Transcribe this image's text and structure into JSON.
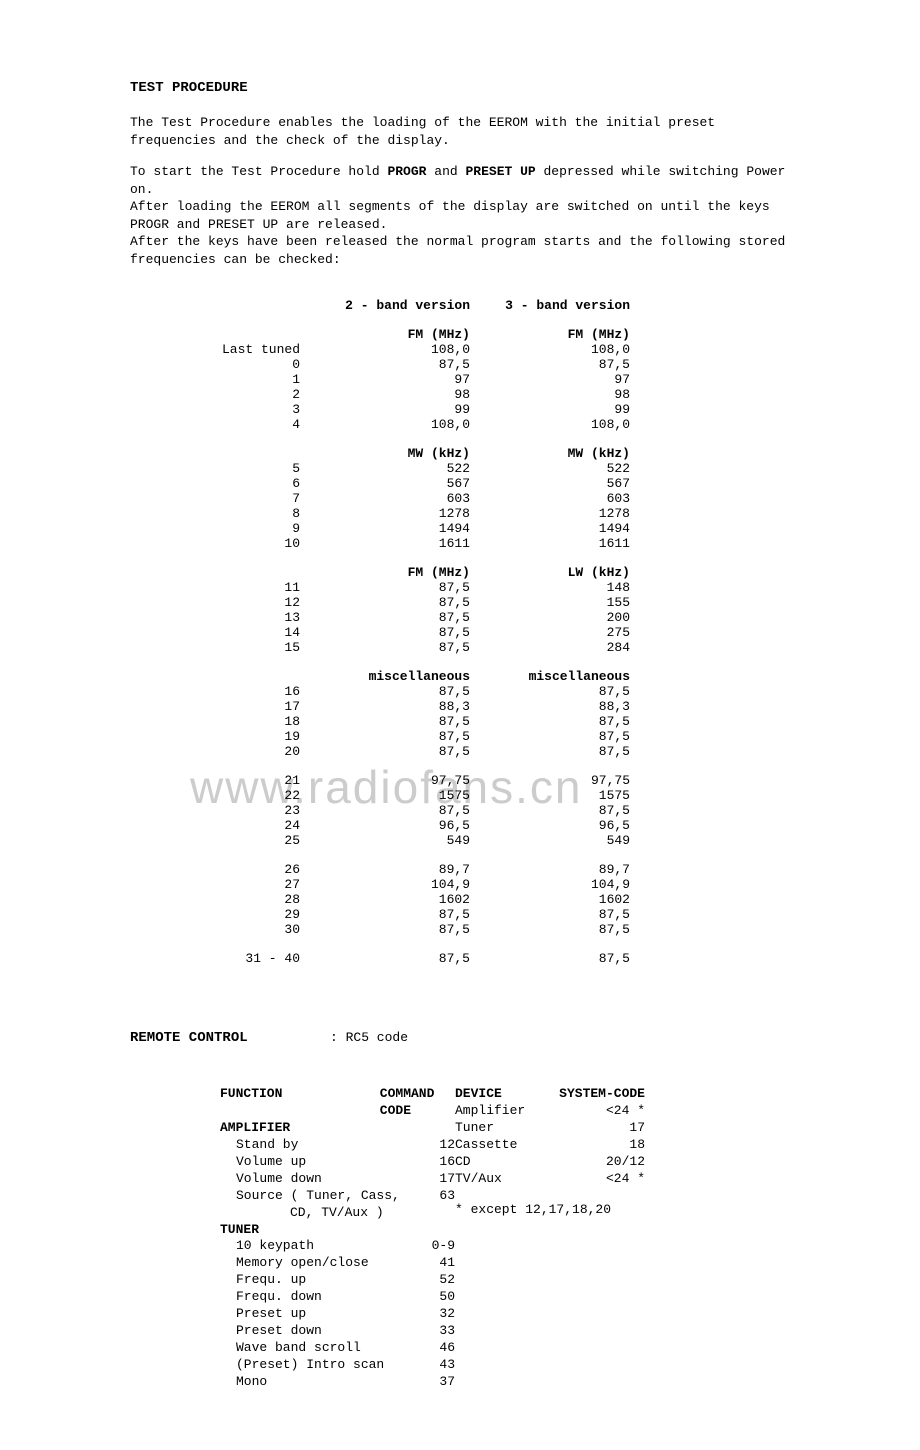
{
  "title": "TEST PROCEDURE",
  "intro1": "The Test Procedure enables the loading of the EEROM with the initial preset frequencies and the check of the display.",
  "intro2_a": "To start the Test Procedure hold ",
  "intro2_b": "PROGR",
  "intro2_c": " and ",
  "intro2_d": "PRESET UP",
  "intro2_e": " depressed while switching Power on.",
  "intro3": "After loading the EEROM all segments of the display are switched on until the keys PROGR and PRESET UP are released.",
  "intro4": "After the keys have been released the normal program starts and the following stored frequencies can be checked:",
  "col_headers": {
    "v2": "2 - band version",
    "v3": "3 - band version"
  },
  "groups": [
    {
      "h2": "FM (MHz)",
      "h3": "FM (MHz)",
      "rows": [
        {
          "l": "Last tuned",
          "v2": "108,0",
          "v3": "108,0"
        },
        {
          "l": "0",
          "v2": "87,5",
          "v3": "87,5"
        },
        {
          "l": "1",
          "v2": "97",
          "v3": "97"
        },
        {
          "l": "2",
          "v2": "98",
          "v3": "98"
        },
        {
          "l": "3",
          "v2": "99",
          "v3": "99"
        },
        {
          "l": "4",
          "v2": "108,0",
          "v3": "108,0"
        }
      ]
    },
    {
      "h2": "MW (kHz)",
      "h3": "MW (kHz)",
      "rows": [
        {
          "l": "5",
          "v2": "522",
          "v3": "522"
        },
        {
          "l": "6",
          "v2": "567",
          "v3": "567"
        },
        {
          "l": "7",
          "v2": "603",
          "v3": "603"
        },
        {
          "l": "8",
          "v2": "1278",
          "v3": "1278"
        },
        {
          "l": "9",
          "v2": "1494",
          "v3": "1494"
        },
        {
          "l": "10",
          "v2": "1611",
          "v3": "1611"
        }
      ]
    },
    {
      "h2": "FM (MHz)",
      "h3": "LW (kHz)",
      "rows": [
        {
          "l": "11",
          "v2": "87,5",
          "v3": "148"
        },
        {
          "l": "12",
          "v2": "87,5",
          "v3": "155"
        },
        {
          "l": "13",
          "v2": "87,5",
          "v3": "200"
        },
        {
          "l": "14",
          "v2": "87,5",
          "v3": "275"
        },
        {
          "l": "15",
          "v2": "87,5",
          "v3": "284"
        }
      ]
    },
    {
      "h2": "miscellaneous",
      "h3": "miscellaneous",
      "rows": [
        {
          "l": "16",
          "v2": "87,5",
          "v3": "87,5"
        },
        {
          "l": "17",
          "v2": "88,3",
          "v3": "88,3"
        },
        {
          "l": "18",
          "v2": "87,5",
          "v3": "87,5"
        },
        {
          "l": "19",
          "v2": "87,5",
          "v3": "87,5"
        },
        {
          "l": "20",
          "v2": "87,5",
          "v3": "87,5"
        }
      ]
    },
    {
      "h2": "",
      "h3": "",
      "rows": [
        {
          "l": "21",
          "v2": "97,75",
          "v3": "97,75"
        },
        {
          "l": "22",
          "v2": "1575",
          "v3": "1575"
        },
        {
          "l": "23",
          "v2": "87,5",
          "v3": "87,5"
        },
        {
          "l": "24",
          "v2": "96,5",
          "v3": "96,5"
        },
        {
          "l": "25",
          "v2": "549",
          "v3": "549"
        }
      ]
    },
    {
      "h2": "",
      "h3": "",
      "rows": [
        {
          "l": "26",
          "v2": "89,7",
          "v3": "89,7"
        },
        {
          "l": "27",
          "v2": "104,9",
          "v3": "104,9"
        },
        {
          "l": "28",
          "v2": "1602",
          "v3": "1602"
        },
        {
          "l": "29",
          "v2": "87,5",
          "v3": "87,5"
        },
        {
          "l": "30",
          "v2": "87,5",
          "v3": "87,5"
        }
      ]
    },
    {
      "h2": "",
      "h3": "",
      "rows": [
        {
          "l": "31 - 40",
          "v2": "87,5",
          "v3": "87,5"
        }
      ]
    }
  ],
  "remote": {
    "heading": "REMOTE CONTROL",
    "value": ": RC5 code"
  },
  "rc": {
    "headers": {
      "func": "FUNCTION",
      "code": "COMMAND CODE",
      "dev": "DEVICE",
      "sys": "SYSTEM-CODE"
    },
    "amp_label": "AMPLIFIER",
    "tuner_label": "TUNER",
    "amp": [
      {
        "f": "Stand by",
        "c": "12"
      },
      {
        "f": "Volume up",
        "c": "16"
      },
      {
        "f": "Volume down",
        "c": "17"
      },
      {
        "f": "Source ( Tuner, Cass,",
        "c": "63"
      },
      {
        "f": "CD, TV/Aux )",
        "c": ""
      }
    ],
    "tuner": [
      {
        "f": "10 keypath",
        "c": "0-9"
      },
      {
        "f": "Memory open/close",
        "c": "41"
      },
      {
        "f": "Frequ. up",
        "c": "52"
      },
      {
        "f": "Frequ. down",
        "c": "50"
      },
      {
        "f": "Preset up",
        "c": "32"
      },
      {
        "f": "Preset down",
        "c": "33"
      },
      {
        "f": "Wave band scroll",
        "c": "46"
      },
      {
        "f": "(Preset) Intro scan",
        "c": "43"
      },
      {
        "f": "Mono",
        "c": "37"
      }
    ],
    "devices": [
      {
        "d": "Amplifier",
        "s": "<24 *"
      },
      {
        "d": "Tuner",
        "s": "17"
      },
      {
        "d": "Cassette",
        "s": "18"
      },
      {
        "d": "CD",
        "s": "20/12"
      },
      {
        "d": "TV/Aux",
        "s": "<24 *"
      }
    ],
    "footnote": "* except 12,17,18,20"
  },
  "watermark": "www.radiofans.cn"
}
